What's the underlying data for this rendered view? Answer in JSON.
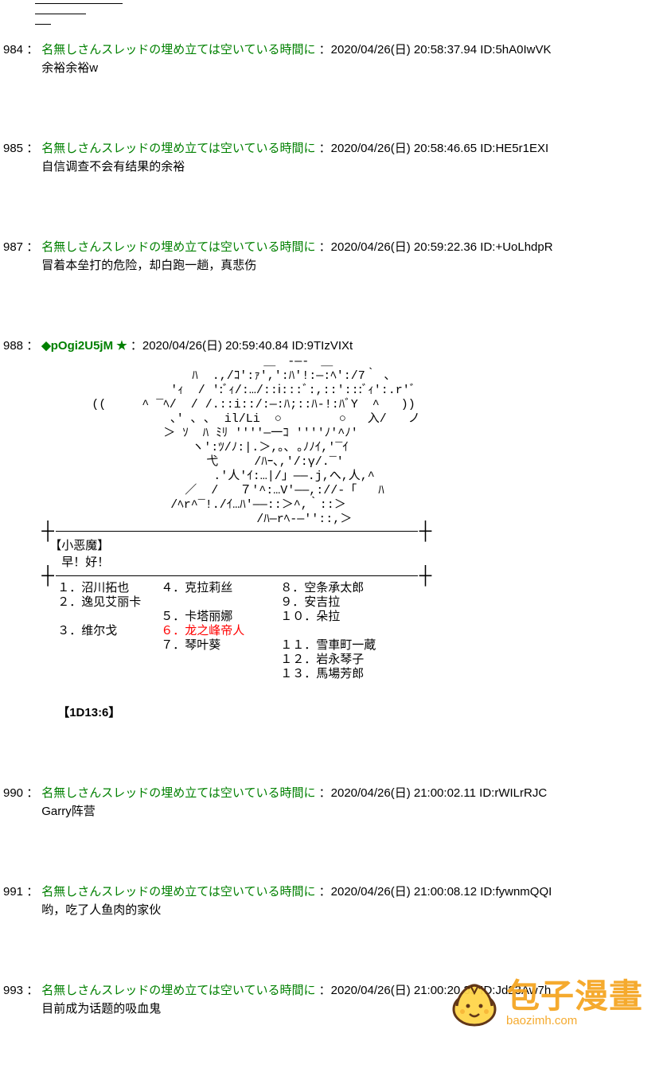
{
  "default_name": "名無しさんスレッドの埋め立ては空いている時間に",
  "posts": [
    {
      "num": "984",
      "name": "名無しさんスレッドの埋め立ては空いている時間に",
      "date": "2020/04/26(日) 20:58:37.94",
      "id": "5hA0IwVK",
      "body": "余裕余裕w",
      "trip": null
    },
    {
      "num": "985",
      "name": "名無しさんスレッドの埋め立ては空いている時間に",
      "date": "2020/04/26(日) 20:58:46.65",
      "id": "HE5r1EXI",
      "body": "自信调查不会有结果的余裕",
      "trip": null
    },
    {
      "num": "987",
      "name": "名無しさんスレッドの埋め立ては空いている時間に",
      "date": "2020/04/26(日) 20:59:22.36",
      "id": "+UoLhdpR",
      "body": "冒着本垒打的危险，却白跑一趟，真悲伤",
      "trip": null
    },
    {
      "num": "988",
      "name": "",
      "trip": "◆pOgi2U5jM ★",
      "date": "2020/04/26(日) 20:59:40.84",
      "id": "9TIzVIXt",
      "body": "",
      "aa": "                               ＿　-―-　＿\n                     ﾊ  .,/ｺ':ｧ',':ﾊ'!:―:ﾍ':/7｀ ､\n                  'ｨ  / ':ﾞｨ/:…/::ⅰ:::ﾞ:,::':::ﾞｨ':.r'ﾞ\n       ((     ^ ‾ﾍ/  / /.::i::/:―:ﾊ;::ﾊ-!:ﾊﾞY  ^   ))\n                  ､' ､ ､  il/Li  ○        ○   入/   ノ\n                 ＞ ｿ  ﾊ ﾐﾘ ''''―一ｺ ''''ﾉ'^ﾉ'\n                     ヽ':ﾂ/ﾉ:|.＞,｡､ ｡ﾉﾉｲ,'‾ｲ\n                       弋     /ﾊｰ､,'/:γ/.‾'\n                        .'人'ｲ:…|/」――.j,へ,人,^\n                    ／  /   ７'^:…V'――,://‐「   ﾊ\n                  /ﾍr^‾!./ｲ…ﾊ'――::＞^,｀::＞\n                              /ﾊ―rﾍ-―''::,＞",
      "char_title": "【小恶魔】",
      "char_line": "　早！好！",
      "list": {
        "col1": [
          "１．沼川拓也",
          "２．逸见艾丽卡",
          "",
          "３．维尔戈"
        ],
        "col2": [
          "４．克拉莉丝",
          "",
          "５．卡塔丽娜",
          "６．龙之峰帝人",
          "７．琴叶葵"
        ],
        "col2_red_idx": 3,
        "col3": [
          "８．空条承太郎",
          "９．安吉拉",
          "１０．朵拉",
          "",
          "１１．雪車町一蔵",
          "１２．岩永琴子",
          "１３．馬場芳郎"
        ]
      },
      "dice": "【1D13:6】"
    },
    {
      "num": "990",
      "name": "名無しさんスレッドの埋め立ては空いている時間に",
      "date": "2020/04/26(日) 21:00:02.11",
      "id": "rWILrRJC",
      "body": "Garry阵营",
      "trip": null
    },
    {
      "num": "991",
      "name": "名無しさんスレッドの埋め立ては空いている時間に",
      "date": "2020/04/26(日) 21:00:08.12",
      "id": "fywnmQQI",
      "body": "哟，吃了人鱼肉的家伙",
      "trip": null
    },
    {
      "num": "993",
      "name": "名無しさんスレッドの埋め立ては空いている時間に",
      "date": "2020/04/26(日) 21:00:20.35",
      "id": "Jd23Aw7h",
      "body": "目前成为话题的吸血鬼",
      "trip": null
    }
  ],
  "watermark": {
    "cn": "包子漫畫",
    "url": "baozimh.com",
    "colors": {
      "orange": "#f5a623",
      "yellow": "#ffd54a",
      "brown": "#5a2d0c"
    }
  }
}
